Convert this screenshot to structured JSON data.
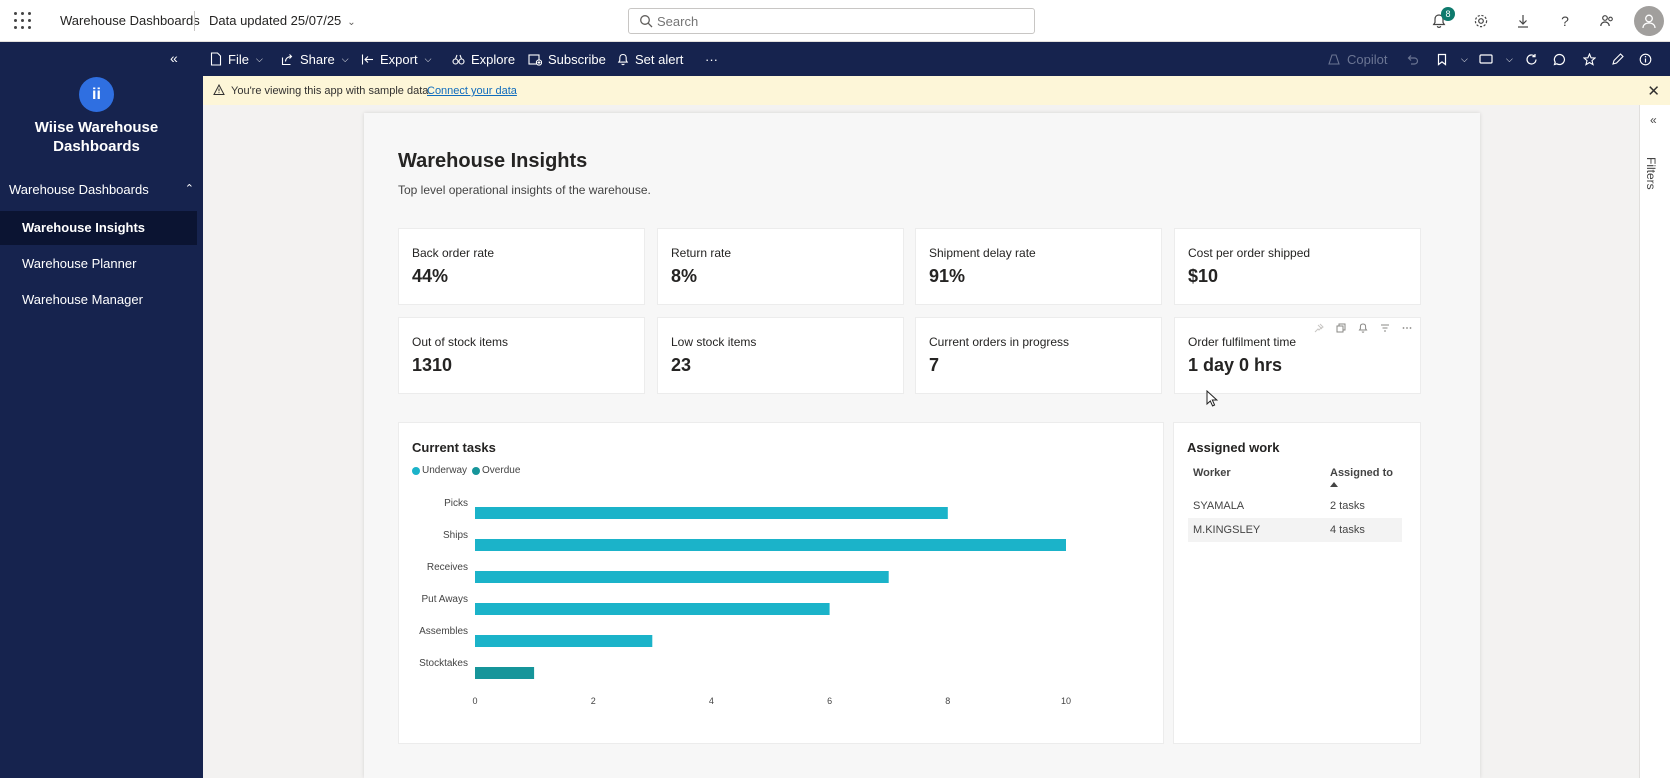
{
  "header": {
    "app_title": "Warehouse Dashboards",
    "data_updated": "Data updated 25/07/25",
    "search_placeholder": "Search",
    "notification_count": "8"
  },
  "sidebar": {
    "workspace_name": "Wiise Warehouse Dashboards",
    "section_label": "Warehouse Dashboards",
    "items": [
      {
        "label": "Warehouse Insights",
        "active": true
      },
      {
        "label": "Warehouse Planner",
        "active": false
      },
      {
        "label": "Warehouse Manager",
        "active": false
      }
    ]
  },
  "actionbar": {
    "file": "File",
    "share": "Share",
    "export": "Export",
    "explore": "Explore",
    "subscribe": "Subscribe",
    "set_alert": "Set alert",
    "more": "···",
    "copilot": "Copilot"
  },
  "banner": {
    "message": "You're viewing this app with sample data.",
    "link": "Connect your data"
  },
  "report": {
    "title": "Warehouse Insights",
    "subtitle": "Top level operational insights of the warehouse.",
    "kpis": [
      {
        "label": "Back order rate",
        "value": "44%"
      },
      {
        "label": "Return rate",
        "value": "8%"
      },
      {
        "label": "Shipment delay rate",
        "value": "91%"
      },
      {
        "label": "Cost per order shipped",
        "value": "$10"
      },
      {
        "label": "Out of stock items",
        "value": "1310"
      },
      {
        "label": "Low stock items",
        "value": "23"
      },
      {
        "label": "Current orders in progress",
        "value": "7"
      },
      {
        "label": "Order fulfilment time",
        "value": "1 day 0 hrs"
      }
    ],
    "tasks_title": "Current tasks",
    "legend": [
      "Underway",
      "Overdue"
    ],
    "work_title": "Assigned work",
    "work_columns": [
      "Worker",
      "Assigned to"
    ],
    "work_rows": [
      {
        "worker": "SYAMALA",
        "assigned": "2 tasks"
      },
      {
        "worker": "M.KINGSLEY",
        "assigned": "4 tasks"
      }
    ]
  },
  "filters_label": "Filters",
  "colors": {
    "nav_bg": "#16234e",
    "underway": "#1bb3c9",
    "overdue": "#16959a",
    "banner_bg": "#fdf6d8"
  },
  "chart_data": {
    "type": "bar",
    "orientation": "horizontal",
    "title": "Current tasks",
    "categories": [
      "Picks",
      "Ships",
      "Receives",
      "Put Aways",
      "Assembles",
      "Stocktakes"
    ],
    "series": [
      {
        "name": "Underway",
        "values": [
          8,
          10,
          7,
          6,
          3,
          0
        ]
      },
      {
        "name": "Overdue",
        "values": [
          0,
          0,
          0,
          0,
          0,
          1
        ]
      }
    ],
    "xlim": [
      0,
      10
    ],
    "xticks": [
      0,
      2,
      4,
      6,
      8,
      10
    ],
    "grid": false,
    "legend": "top-left"
  }
}
